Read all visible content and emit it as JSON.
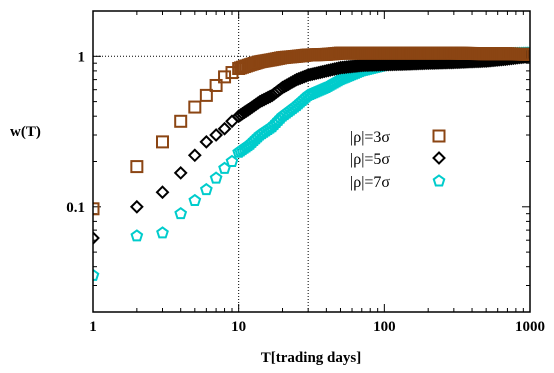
{
  "chart_data": {
    "type": "scatter",
    "xlabel": "T[trading days]",
    "ylabel": "w(T)",
    "xscale": "log",
    "yscale": "log",
    "xlim": [
      1,
      1000
    ],
    "ylim": [
      0.02,
      2
    ],
    "x_ticks": [
      {
        "value": 1,
        "label": "1"
      },
      {
        "value": 10,
        "label": "10"
      },
      {
        "value": 100,
        "label": "100"
      },
      {
        "value": 1000,
        "label": "1000"
      }
    ],
    "y_ticks": [
      {
        "value": 0.1,
        "label": "0.1"
      },
      {
        "value": 1,
        "label": "1"
      }
    ],
    "reference_lines": {
      "vertical_x": [
        10,
        30
      ],
      "horizontal_y": [
        1
      ],
      "style": "dotted"
    },
    "legend_placement": "center-right",
    "series": [
      {
        "name": "|ρ|=3σ",
        "marker": "square",
        "color": "#8b4513",
        "points": [
          [
            1,
            0.097
          ],
          [
            2,
            0.185
          ],
          [
            3,
            0.27
          ],
          [
            4,
            0.37
          ],
          [
            5,
            0.46
          ],
          [
            6,
            0.55
          ],
          [
            7,
            0.64
          ],
          [
            8,
            0.73
          ],
          [
            9,
            0.78
          ],
          [
            10,
            0.83
          ],
          [
            12,
            0.88
          ],
          [
            14,
            0.92
          ],
          [
            17,
            0.95
          ],
          [
            20,
            0.98
          ],
          [
            25,
            1.0
          ],
          [
            30,
            1.02
          ],
          [
            40,
            1.03
          ],
          [
            50,
            1.05
          ],
          [
            70,
            1.05
          ],
          [
            100,
            1.05
          ],
          [
            150,
            1.05
          ],
          [
            200,
            1.05
          ],
          [
            300,
            1.05
          ],
          [
            500,
            1.04
          ],
          [
            700,
            1.04
          ],
          [
            1000,
            1.03
          ]
        ]
      },
      {
        "name": "|ρ|=5σ",
        "marker": "diamond",
        "color": "#000000",
        "points": [
          [
            1,
            0.062
          ],
          [
            2,
            0.1
          ],
          [
            3,
            0.125
          ],
          [
            4,
            0.168
          ],
          [
            5,
            0.22
          ],
          [
            6,
            0.27
          ],
          [
            7,
            0.3
          ],
          [
            8,
            0.33
          ],
          [
            9,
            0.37
          ],
          [
            10,
            0.4
          ],
          [
            12,
            0.45
          ],
          [
            14,
            0.5
          ],
          [
            17,
            0.55
          ],
          [
            20,
            0.62
          ],
          [
            25,
            0.7
          ],
          [
            30,
            0.75
          ],
          [
            40,
            0.8
          ],
          [
            50,
            0.84
          ],
          [
            70,
            0.87
          ],
          [
            100,
            0.88
          ],
          [
            150,
            0.89
          ],
          [
            200,
            0.9
          ],
          [
            300,
            0.91
          ],
          [
            500,
            0.93
          ],
          [
            700,
            0.96
          ],
          [
            1000,
            1.0
          ]
        ]
      },
      {
        "name": "|ρ|=7σ",
        "marker": "pentagon",
        "color": "#00cccc",
        "points": [
          [
            1,
            0.035
          ],
          [
            2,
            0.064
          ],
          [
            3,
            0.067
          ],
          [
            4,
            0.09
          ],
          [
            5,
            0.11
          ],
          [
            6,
            0.13
          ],
          [
            7,
            0.155
          ],
          [
            8,
            0.18
          ],
          [
            9,
            0.2
          ],
          [
            10,
            0.23
          ],
          [
            12,
            0.26
          ],
          [
            14,
            0.3
          ],
          [
            17,
            0.34
          ],
          [
            20,
            0.4
          ],
          [
            25,
            0.47
          ],
          [
            30,
            0.55
          ],
          [
            40,
            0.62
          ],
          [
            50,
            0.7
          ],
          [
            70,
            0.8
          ],
          [
            100,
            0.87
          ],
          [
            150,
            0.93
          ],
          [
            200,
            0.97
          ],
          [
            300,
            1.0
          ],
          [
            500,
            1.03
          ],
          [
            700,
            1.04
          ],
          [
            1000,
            1.05
          ]
        ]
      }
    ]
  }
}
